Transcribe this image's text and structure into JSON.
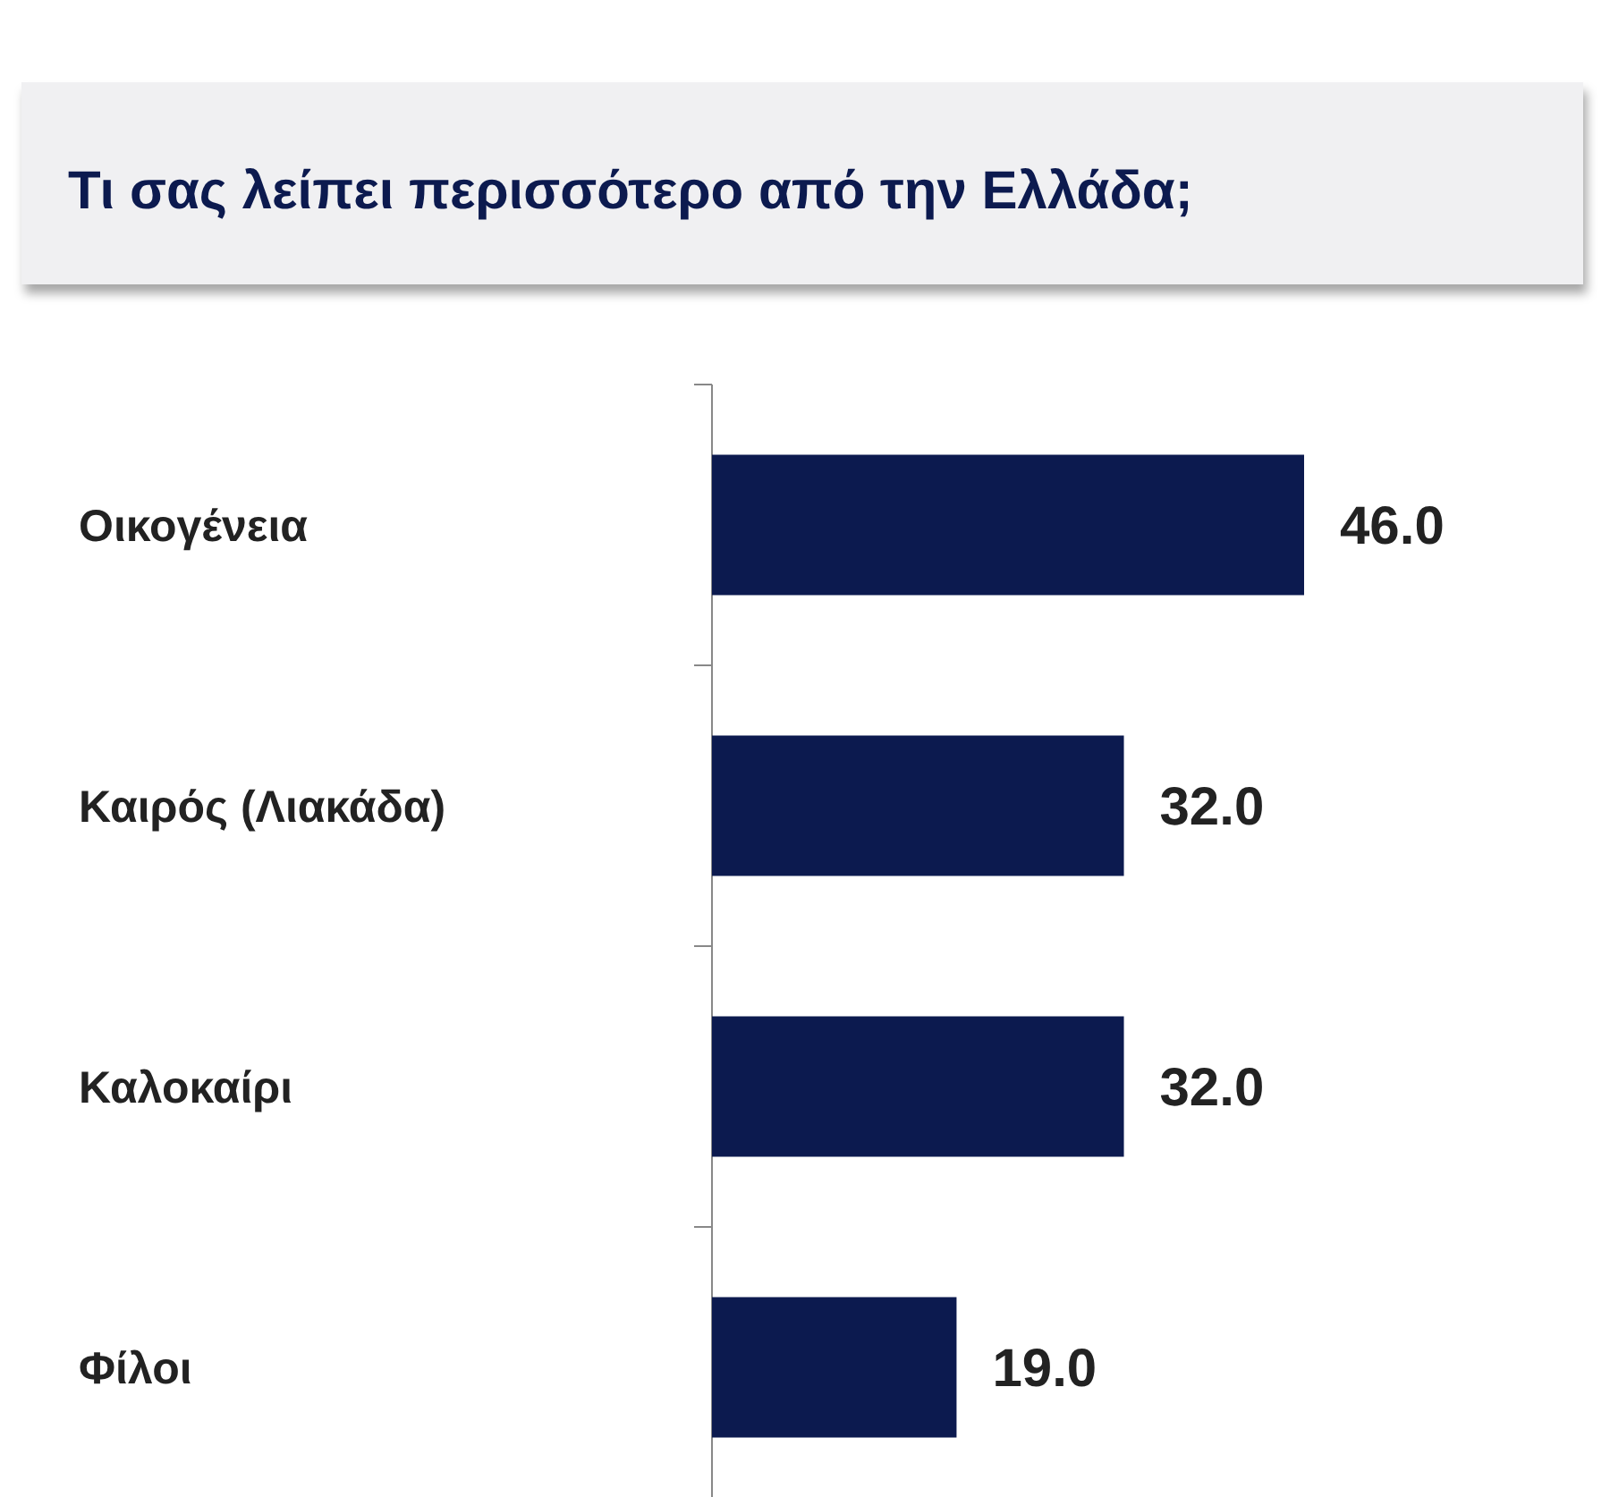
{
  "chart_data": {
    "type": "bar",
    "orientation": "horizontal",
    "title": "Τι σας λείπει περισσότερο από την Ελλάδα;",
    "categories": [
      "Οικογένεια",
      "Καιρός (Λιακάδα)",
      "Καλοκαίρι",
      "Φίλοι"
    ],
    "values": [
      46.0,
      32.0,
      32.0,
      19.0
    ],
    "value_labels": [
      "46.0",
      "32.0",
      "32.0",
      "19.0"
    ],
    "color": "#0c1a4f"
  }
}
